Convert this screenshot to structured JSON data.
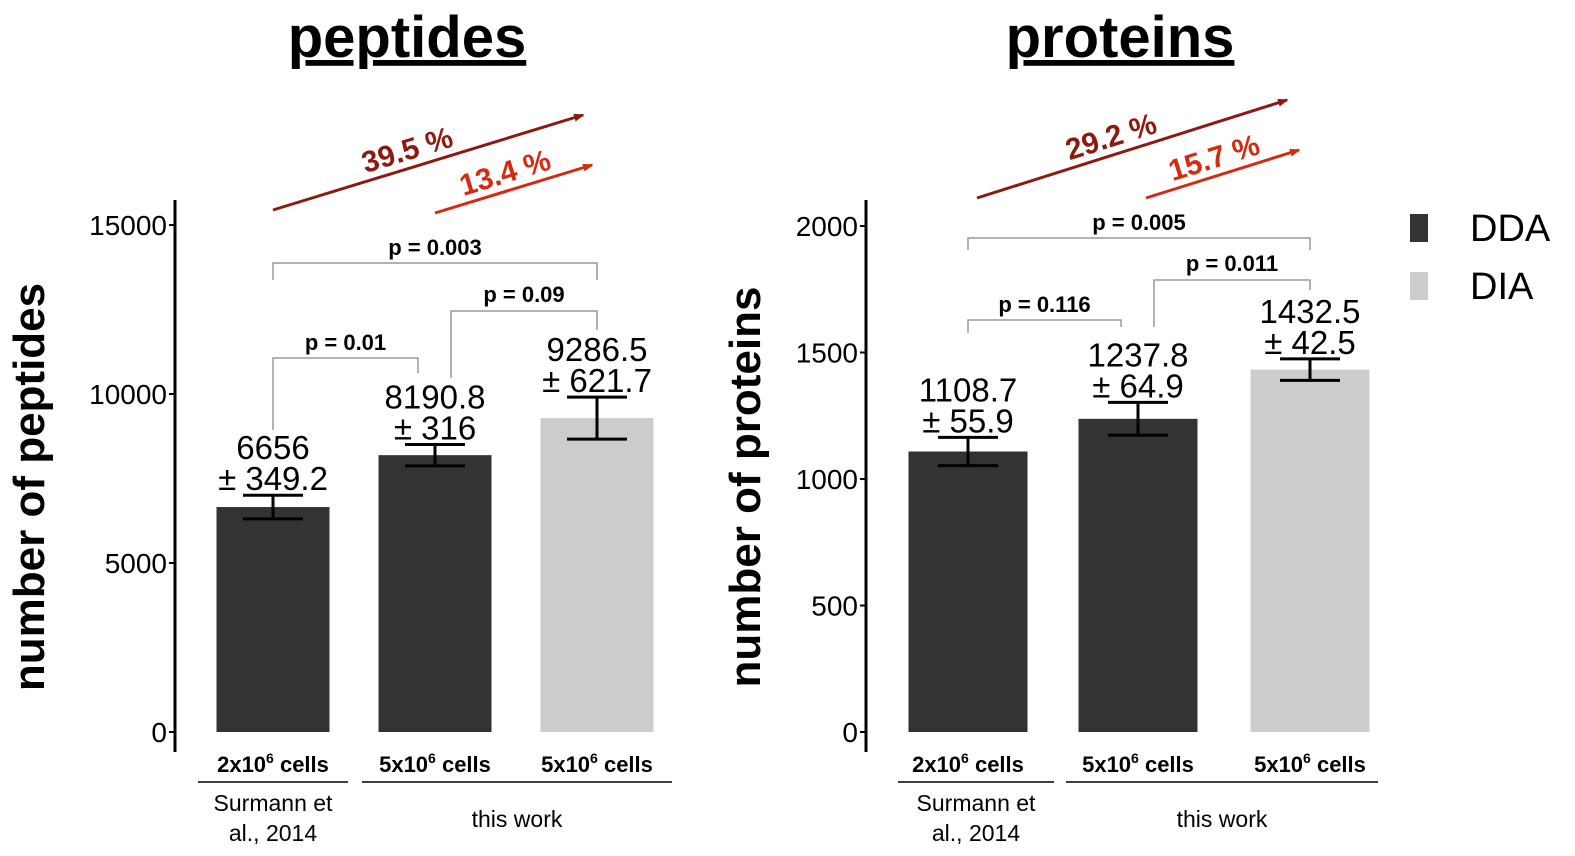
{
  "colors": {
    "DDA": "#333333",
    "DIA": "#cccccc",
    "arrow_dark": "#8b1a10",
    "arrow_light": "#d42a12",
    "bracket": "#999999"
  },
  "legend": [
    {
      "label": "DDA",
      "color": "#333333"
    },
    {
      "label": "DIA",
      "color": "#cccccc"
    }
  ],
  "chart_data": [
    {
      "type": "bar",
      "title": "peptides",
      "ylabel": "number of peptides",
      "ylim": [
        0,
        15000
      ],
      "yticks": [
        "0",
        "5000",
        "10000",
        "15000"
      ],
      "ytick_values": [
        0,
        5000,
        10000,
        15000
      ],
      "categories": [
        "2x10^6 cells",
        "5x10^6 cells",
        "5x10^6 cells"
      ],
      "category_labels": [
        {
          "base": "2x10",
          "sup": "6",
          "rest": " cells"
        },
        {
          "base": "5x10",
          "sup": "6",
          "rest": " cells"
        },
        {
          "base": "5x10",
          "sup": "6",
          "rest": " cells"
        }
      ],
      "acquisition": [
        "DDA",
        "DDA",
        "DIA"
      ],
      "values": [
        6656,
        8190.8,
        9286.5
      ],
      "errors": [
        349.2,
        316,
        621.7
      ],
      "value_labels": [
        [
          "6656",
          "± 349.2"
        ],
        [
          "8190.8",
          "± 316"
        ],
        [
          "9286.5",
          "± 621.7"
        ]
      ],
      "groups": [
        {
          "lines": [
            "Surmann et",
            "al., 2014"
          ],
          "span": [
            0,
            0
          ]
        },
        {
          "lines": [
            "this work"
          ],
          "span": [
            1,
            2
          ]
        }
      ],
      "comparisons": [
        {
          "from": 0,
          "to": 1,
          "label": "p = 0.01"
        },
        {
          "from": 1,
          "to": 2,
          "label": "p = 0.09"
        },
        {
          "from": 0,
          "to": 2,
          "label": "p = 0.003"
        }
      ],
      "increases": [
        {
          "from": 0,
          "to": 2,
          "label": "39.5 %"
        },
        {
          "from": 1,
          "to": 2,
          "label": "13.4 %"
        }
      ]
    },
    {
      "type": "bar",
      "title": "proteins",
      "ylabel": "number of proteins",
      "ylim": [
        0,
        2000
      ],
      "yticks": [
        "0",
        "500",
        "1000",
        "1500",
        "2000"
      ],
      "ytick_values": [
        0,
        500,
        1000,
        1500,
        2000
      ],
      "categories": [
        "2x10^6 cells",
        "5x10^6 cells",
        "5x10^6 cells"
      ],
      "category_labels": [
        {
          "base": "2x10",
          "sup": "6",
          "rest": " cells"
        },
        {
          "base": "5x10",
          "sup": "6",
          "rest": " cells"
        },
        {
          "base": "5x10",
          "sup": "6",
          "rest": " cells"
        }
      ],
      "acquisition": [
        "DDA",
        "DDA",
        "DIA"
      ],
      "values": [
        1108.7,
        1237.8,
        1432.5
      ],
      "errors": [
        55.9,
        64.9,
        42.5
      ],
      "value_labels": [
        [
          "1108.7",
          "± 55.9"
        ],
        [
          "1237.8",
          "± 64.9"
        ],
        [
          "1432.5",
          "± 42.5"
        ]
      ],
      "groups": [
        {
          "lines": [
            "Surmann et",
            "al., 2014"
          ],
          "span": [
            0,
            0
          ]
        },
        {
          "lines": [
            "this work"
          ],
          "span": [
            1,
            2
          ]
        }
      ],
      "comparisons": [
        {
          "from": 0,
          "to": 1,
          "label": "p = 0.116"
        },
        {
          "from": 1,
          "to": 2,
          "label": "p = 0.011"
        },
        {
          "from": 0,
          "to": 2,
          "label": "p = 0.005"
        }
      ],
      "increases": [
        {
          "from": 0,
          "to": 2,
          "label": "29.2 %"
        },
        {
          "from": 1,
          "to": 2,
          "label": "15.7 %"
        }
      ]
    }
  ]
}
